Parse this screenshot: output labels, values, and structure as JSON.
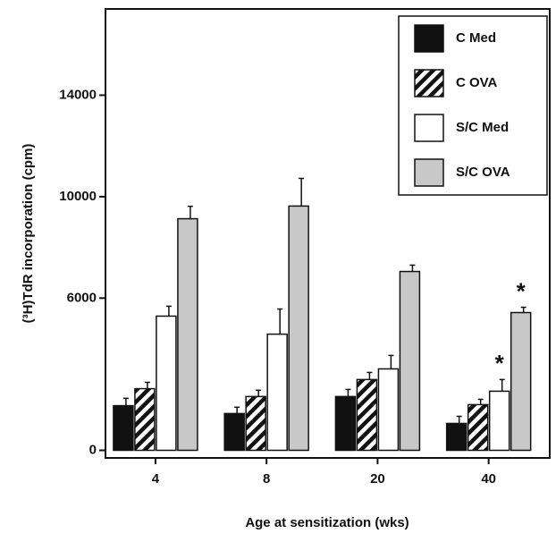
{
  "chart_data": {
    "type": "bar",
    "y_label": "(³H)TdR incorporation (cpm)",
    "x_label": "Age at sensitization (wks)",
    "categories": [
      "4",
      "8",
      "20",
      "40"
    ],
    "series": [
      {
        "name": "C Med",
        "color": "#111111",
        "values": [
          1760,
          1450,
          2120,
          1060
        ],
        "errors": [
          290,
          250,
          280,
          280
        ]
      },
      {
        "name": "C OVA",
        "color": "#111111",
        "pattern": "hatch",
        "values": [
          2430,
          2120,
          2790,
          1800
        ],
        "errors": [
          250,
          250,
          280,
          210
        ]
      },
      {
        "name": "S/C Med",
        "color": "#ffffff",
        "values": [
          5290,
          4580,
          3210,
          2330
        ],
        "errors": [
          390,
          990,
          530,
          460
        ]
      },
      {
        "name": "S/C OVA",
        "color": "#c8c8c8",
        "values": [
          9130,
          9630,
          7050,
          5430
        ],
        "errors": [
          490,
          1090,
          250,
          210
        ]
      }
    ],
    "annotations": [
      {
        "text": "*",
        "category": "40",
        "series": "S/C Med"
      },
      {
        "text": "*",
        "category": "40",
        "series": "S/C OVA"
      }
    ],
    "ylim": [
      -300,
      17400
    ],
    "yticks": [
      0,
      6000,
      10000,
      14000
    ],
    "legend": "upper right",
    "grid": false
  }
}
